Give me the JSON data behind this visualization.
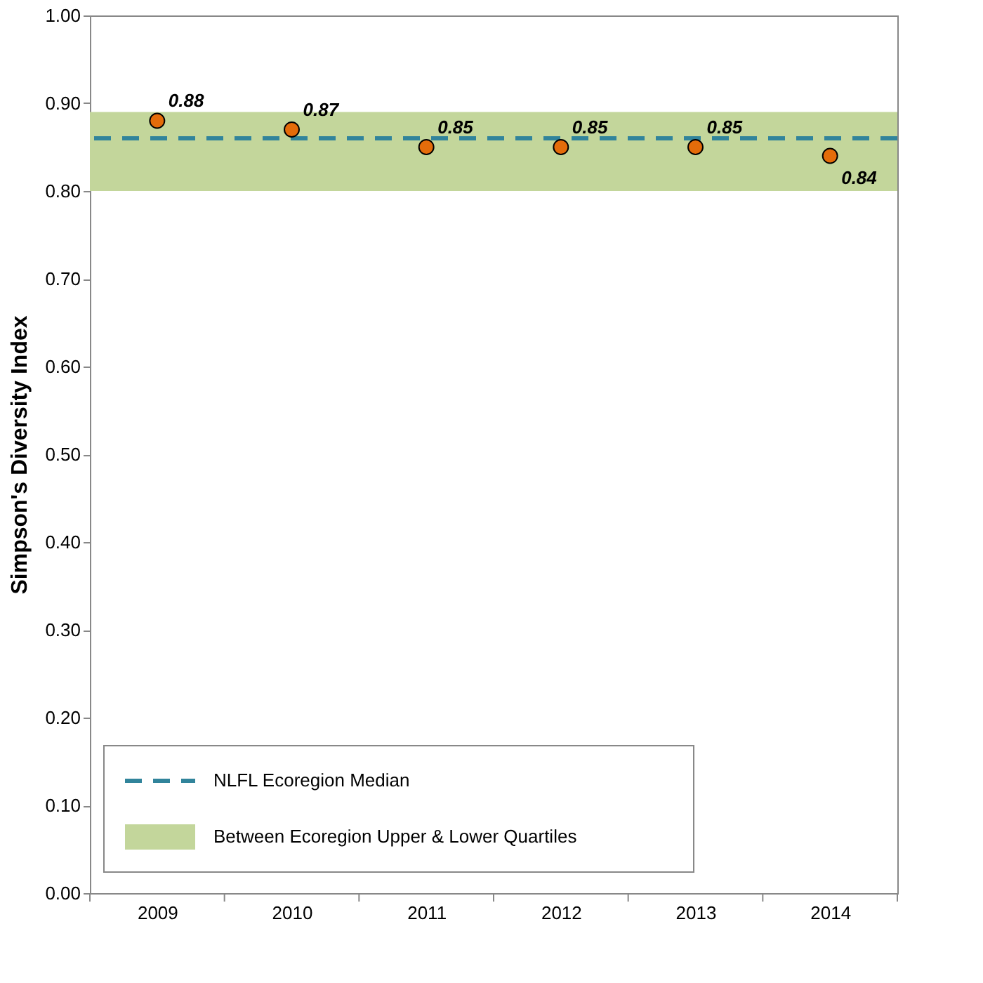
{
  "chart_data": {
    "type": "scatter",
    "ylabel": "Simpson's Diversity Index",
    "categories": [
      "2009",
      "2010",
      "2011",
      "2012",
      "2013",
      "2014"
    ],
    "series": [
      {
        "color": "#e46c0a",
        "values": [
          0.88,
          0.87,
          0.85,
          0.85,
          0.85,
          0.84
        ]
      }
    ],
    "ylim": [
      0,
      1
    ],
    "yticks": [
      {
        "value": 0,
        "label": "0.00"
      },
      {
        "value": 0.1,
        "label": "0.10"
      },
      {
        "value": 0.2,
        "label": "0.20"
      },
      {
        "value": 0.3,
        "label": "0.30"
      },
      {
        "value": 0.4,
        "label": "0.40"
      },
      {
        "value": 0.5,
        "label": "0.50"
      },
      {
        "value": 0.6,
        "label": "0.60"
      },
      {
        "value": 0.7,
        "label": "0.70"
      },
      {
        "value": 0.8,
        "label": "0.80"
      },
      {
        "value": 0.9,
        "label": "0.90"
      },
      {
        "value": 1,
        "label": "1.00"
      }
    ],
    "ref_lines": [
      {
        "axis": "y",
        "value": 0.86,
        "label": "NLFL Ecoregion Median",
        "color": "#31849b",
        "line_style": "dashed"
      }
    ],
    "bands": [
      {
        "axis": "y",
        "from": 0.8,
        "to": 0.89,
        "label": "Between Ecoregion Upper & Lower Quartiles",
        "color": "#c3d69b"
      }
    ],
    "data_labels": true,
    "marker": "circle",
    "grid": false,
    "legend": "bottom left"
  }
}
